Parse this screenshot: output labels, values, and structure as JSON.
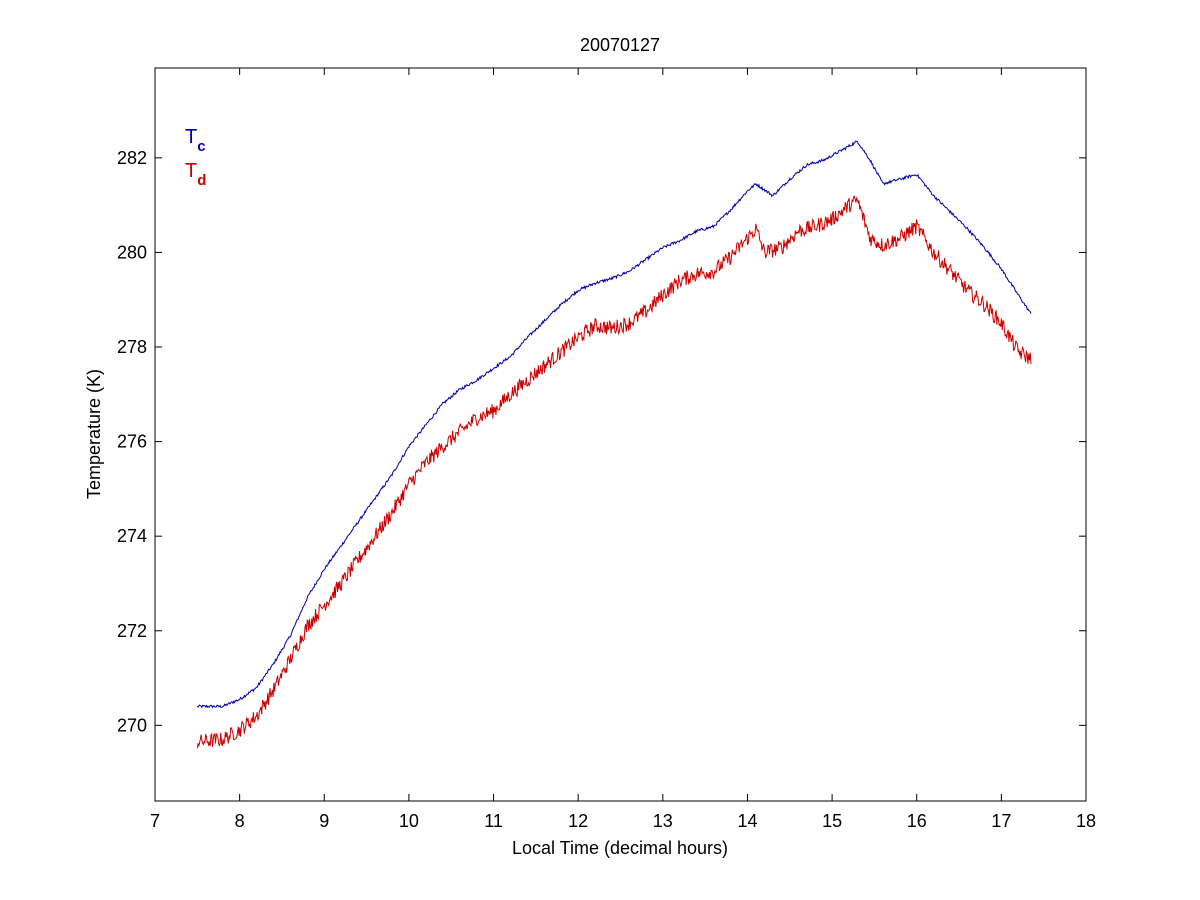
{
  "chart_data": {
    "type": "line",
    "title": "20070127",
    "xlabel": "Local Time (decimal hours)",
    "ylabel": "Temperature (K)",
    "xlim": [
      7,
      18
    ],
    "ylim": [
      268.4,
      283.9
    ],
    "xticks": [
      7,
      8,
      9,
      10,
      11,
      12,
      13,
      14,
      15,
      16,
      17,
      18
    ],
    "yticks": [
      270,
      272,
      274,
      276,
      278,
      280,
      282
    ],
    "grid": false,
    "legend_position": "top-left",
    "legend": [
      {
        "base": "T",
        "sub": "c",
        "color": "#0000aa"
      },
      {
        "base": "T",
        "sub": "d",
        "color": "#cc0000"
      }
    ],
    "series": [
      {
        "color": "#0000aa",
        "noise": 0.03,
        "x": [
          7.5,
          7.8,
          8.0,
          8.2,
          8.4,
          8.6,
          8.8,
          9.0,
          9.2,
          9.4,
          9.6,
          9.8,
          10.0,
          10.2,
          10.4,
          10.6,
          10.8,
          11.0,
          11.2,
          11.4,
          11.6,
          11.8,
          12.0,
          12.2,
          12.4,
          12.6,
          12.8,
          13.0,
          13.2,
          13.4,
          13.6,
          13.8,
          14.0,
          14.1,
          14.3,
          14.5,
          14.7,
          14.9,
          15.1,
          15.3,
          15.45,
          15.6,
          15.8,
          16.0,
          16.2,
          16.4,
          16.6,
          16.8,
          17.0,
          17.2,
          17.35
        ],
        "y": [
          270.4,
          270.4,
          270.55,
          270.8,
          271.3,
          271.9,
          272.7,
          273.3,
          273.8,
          274.3,
          274.8,
          275.3,
          275.9,
          276.35,
          276.8,
          277.1,
          277.3,
          277.55,
          277.8,
          278.2,
          278.55,
          278.9,
          279.2,
          279.35,
          279.45,
          279.6,
          279.85,
          280.1,
          280.25,
          280.45,
          280.55,
          280.9,
          281.3,
          281.45,
          281.2,
          281.55,
          281.85,
          281.95,
          282.15,
          282.35,
          281.95,
          281.45,
          281.55,
          281.65,
          281.2,
          280.85,
          280.5,
          280.1,
          279.65,
          279.1,
          278.7
        ]
      },
      {
        "color": "#cc0000",
        "noise": 0.16,
        "x": [
          7.5,
          7.8,
          8.0,
          8.2,
          8.4,
          8.6,
          8.8,
          9.0,
          9.2,
          9.4,
          9.6,
          9.8,
          10.0,
          10.2,
          10.4,
          10.6,
          10.8,
          11.0,
          11.2,
          11.4,
          11.6,
          11.8,
          12.0,
          12.2,
          12.4,
          12.6,
          12.8,
          13.0,
          13.2,
          13.4,
          13.6,
          13.8,
          14.0,
          14.1,
          14.2,
          14.4,
          14.6,
          14.8,
          15.0,
          15.2,
          15.3,
          15.45,
          15.6,
          15.8,
          16.0,
          16.2,
          16.4,
          16.6,
          16.8,
          17.0,
          17.2,
          17.35
        ],
        "y": [
          269.65,
          269.7,
          269.9,
          270.2,
          270.75,
          271.4,
          272.1,
          272.55,
          273.0,
          273.5,
          274.0,
          274.5,
          275.1,
          275.55,
          275.9,
          276.2,
          276.5,
          276.65,
          277.0,
          277.3,
          277.6,
          277.9,
          278.2,
          278.45,
          278.4,
          278.5,
          278.75,
          279.1,
          279.4,
          279.55,
          279.6,
          279.9,
          280.3,
          280.5,
          280.0,
          280.1,
          280.45,
          280.55,
          280.7,
          281.0,
          281.1,
          280.3,
          280.15,
          280.3,
          280.55,
          280.0,
          279.6,
          279.2,
          278.9,
          278.5,
          277.9,
          277.75
        ]
      }
    ]
  }
}
